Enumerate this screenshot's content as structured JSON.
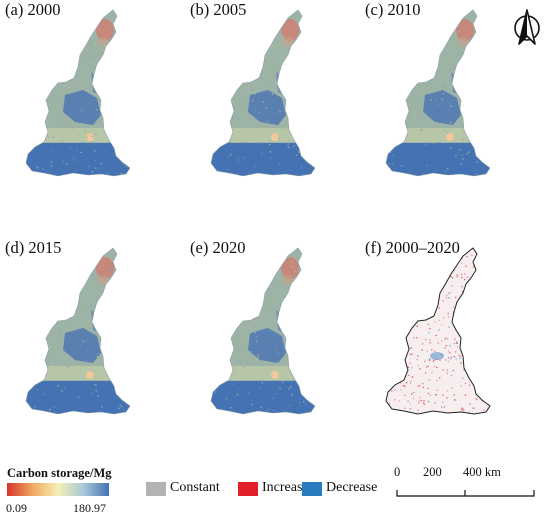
{
  "panels": [
    {
      "title": "(a) 2000",
      "kind": "storage"
    },
    {
      "title": "(b) 2005",
      "kind": "storage"
    },
    {
      "title": "(c) 2010",
      "kind": "storage"
    },
    {
      "title": "(d) 2015",
      "kind": "storage"
    },
    {
      "title": "(e) 2020",
      "kind": "storage"
    },
    {
      "title": "(f) 2000–2020",
      "kind": "change"
    }
  ],
  "storage_legend": {
    "title": "Carbon storage/Mg",
    "min": "0.09",
    "max": "180.97",
    "colors": [
      "#d7332a",
      "#f0a860",
      "#f6f0b5",
      "#a9c8d9",
      "#4472b3"
    ]
  },
  "change_legend": {
    "items": [
      {
        "label": "Constant",
        "color": "#b3b3b3"
      },
      {
        "label": "Increase",
        "color": "#e0202a"
      },
      {
        "label": "Decrease",
        "color": "#2b7bbf"
      }
    ]
  },
  "scale_bar": {
    "ticks": [
      "0",
      "200",
      "400 km"
    ]
  },
  "compass": {
    "icon": "north-arrow-icon"
  },
  "colors": {
    "high_storage": "#4472b3",
    "mid_storage": "#9bb5a8",
    "low_storage": "#d7332a"
  }
}
